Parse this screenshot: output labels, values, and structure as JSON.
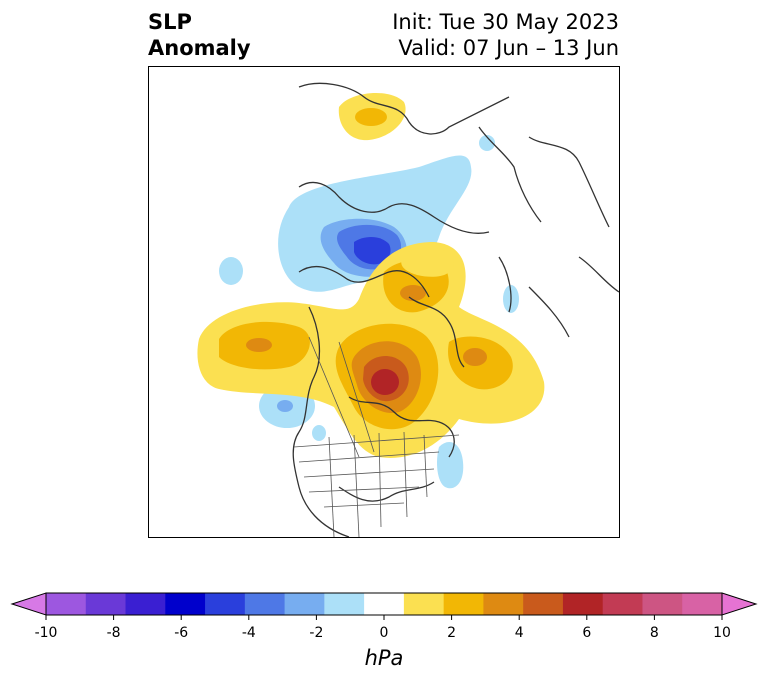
{
  "title": {
    "line1": "SLP",
    "line2": "Anomaly",
    "init": "Init: Tue 30 May 2023",
    "valid": "Valid: 07 Jun – 13 Jun"
  },
  "colorbar": {
    "unit": "hPa",
    "ticks": [
      "-10",
      "-8",
      "-6",
      "-4",
      "-2",
      "0",
      "2",
      "4",
      "6",
      "8",
      "10"
    ],
    "colors": [
      "#d779e6",
      "#9d57e0",
      "#6a39d7",
      "#3a1fd2",
      "#0000cc",
      "#2a3fdc",
      "#4e78e6",
      "#77adf0",
      "#ace0f8",
      "#ffffff",
      "#fbe051",
      "#f2b705",
      "#de8a12",
      "#c95a1c",
      "#b12426",
      "#c23b54",
      "#cd5583",
      "#d862a5",
      "#e673d3"
    ]
  }
}
